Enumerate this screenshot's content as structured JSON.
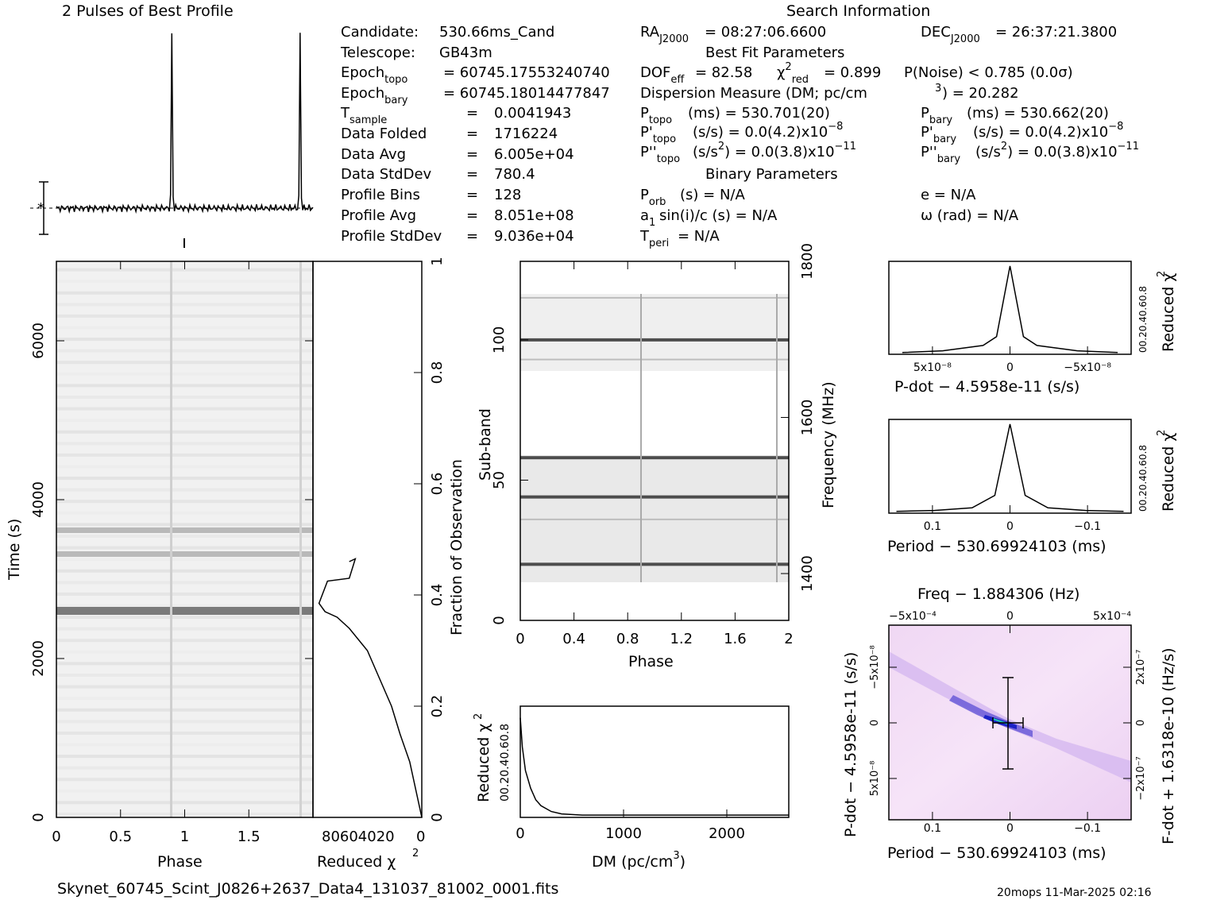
{
  "profile": {
    "title": "2 Pulses of Best Profile"
  },
  "info": {
    "left": [
      {
        "label": "Candidate:",
        "value": "530.66ms_Cand"
      },
      {
        "label": "Telescope:",
        "value": "GB43m"
      },
      {
        "label": "Epoch",
        "sub": "topo",
        "value": "= 60745.17553240740"
      },
      {
        "label": "Epoch",
        "sub": "bary",
        "value": "= 60745.18014477847"
      },
      {
        "label": "T",
        "sub": "sample",
        "value": "0.0041943"
      },
      {
        "label": "Data Folded",
        "value": "1716224"
      },
      {
        "label": "Data Avg",
        "value": "6.005e+04"
      },
      {
        "label": "Data StdDev",
        "value": "780.4"
      },
      {
        "label": "Profile Bins",
        "value": "128"
      },
      {
        "label": "Profile Avg",
        "value": "8.051e+08"
      },
      {
        "label": "Profile StdDev",
        "value": "9.036e+04"
      }
    ],
    "search_title": "Search Information",
    "ra": "= 08:27:06.6600",
    "dec": "= 26:37:21.3800",
    "best_fit_title": "Best Fit Parameters",
    "dof": "= 82.58",
    "chi2": "= 0.899",
    "pnoise": "P(Noise) < 0.785   (0.0σ)",
    "dm_line": "Dispersion Measure (DM; pc/cm",
    "dm_value": ") = 20.282",
    "ptopo": "(ms) =  530.701(20)",
    "pbary": "(ms) =  530.662(20)",
    "pdot_topo": "(s/s) = 0.0(4.2)x10",
    "pdot_topo_exp": "−8",
    "pdot_bary": "(s/s) = 0.0(4.2)x10",
    "pdot_bary_exp": "−8",
    "pddot_topo": "(s/s",
    "pddot_topo_val": ") = 0.0(3.8)x10",
    "pddot_topo_exp": "−11",
    "pddot_bary": "(s/s",
    "pddot_bary_val": ") = 0.0(3.8)x10",
    "pddot_bary_exp": "−11",
    "binary_title": "Binary Parameters",
    "porb": "(s) = N/A",
    "a1sini": "sin(i)/c (s) = N/A",
    "tperi": "= N/A",
    "e": "e = N/A",
    "omega": "ω (rad) = N/A"
  },
  "footer": {
    "filename": "Skynet_60745_Scint_J0826+2637_Data4_131037_81002_0001.fits",
    "stamp": "20mops 11-Mar-2025 02:16"
  },
  "chart_data": [
    {
      "type": "line",
      "name": "profile",
      "title": "2 Pulses of Best Profile",
      "xlim": [
        0,
        2
      ],
      "pulse_phases": [
        0.9,
        1.9
      ],
      "baseline": 0.0,
      "peak": 1.0
    },
    {
      "type": "heatmap",
      "name": "time-phase",
      "xlabel": "Phase",
      "ylabel": "Time (s)",
      "xlim": [
        0,
        2
      ],
      "ylim": [
        0,
        7000
      ],
      "xticks": [
        "0",
        "0.5",
        "1",
        "1.5"
      ],
      "yticks": [
        "0",
        "2000",
        "4000",
        "6000"
      ],
      "bright_rows_time_s": [
        2600,
        3300,
        3600
      ]
    },
    {
      "type": "line",
      "name": "reduced-chi2-vs-time",
      "xlabel": "Reduced χ",
      "ylabel": "Fraction of Observation",
      "xticks": [
        "80604020",
        "0"
      ],
      "yticks": [
        "0",
        "0.2",
        "0.4",
        "0.6",
        "0.8",
        "1"
      ],
      "x": [
        0,
        5,
        10,
        18,
        25,
        35,
        45,
        60,
        70,
        80,
        85,
        78,
        60,
        55,
        60
      ],
      "y": [
        0,
        0.05,
        0.1,
        0.15,
        0.2,
        0.25,
        0.3,
        0.34,
        0.36,
        0.37,
        0.385,
        0.425,
        0.43,
        0.465,
        0.46
      ]
    },
    {
      "type": "heatmap",
      "name": "subband-phase",
      "xlabel": "Phase",
      "ylabel": "Sub-band",
      "y2label": "Frequency (MHz)",
      "xlim": [
        0,
        2
      ],
      "ylim": [
        0,
        128
      ],
      "xticks": [
        "0",
        "0.4",
        "0.8",
        "1.2",
        "1.6",
        "2"
      ],
      "yticks": [
        "0",
        "50",
        "100"
      ],
      "y2ticks": [
        "1400",
        "1600",
        "1800"
      ],
      "dark_subbands": [
        20,
        44,
        58,
        100
      ]
    },
    {
      "type": "line",
      "name": "reduced-chi2-vs-dm",
      "xlabel": "DM (pc/cm",
      "ylabel": "Reduced χ",
      "xlim": [
        0,
        2600
      ],
      "xticks": [
        "0",
        "1000",
        "2000"
      ],
      "yticks": [
        "0",
        "0.2",
        "0.4",
        "0.6",
        "0.8"
      ],
      "x": [
        0,
        20,
        50,
        100,
        150,
        200,
        300,
        400,
        600,
        1000,
        1500,
        2000,
        2600
      ],
      "y": [
        0.85,
        0.6,
        0.4,
        0.25,
        0.15,
        0.1,
        0.05,
        0.03,
        0.02,
        0.02,
        0.02,
        0.02,
        0.02
      ]
    },
    {
      "type": "line",
      "name": "reduced-chi2-vs-pdot",
      "xlabel": "P-dot − 4.5958e-11 (s/s)",
      "ylabel": "Reduced χ",
      "xticks": [
        "5x10⁻⁸",
        "0",
        "−5x10⁻⁸"
      ],
      "yticks": [
        "0",
        "0.2",
        "0.4",
        "0.6",
        "0.8"
      ],
      "x": [
        8e-08,
        5e-08,
        2e-08,
        1e-08,
        0,
        -1e-08,
        -2e-08,
        -5e-08,
        -8e-08
      ],
      "y": [
        0.02,
        0.04,
        0.1,
        0.2,
        1.0,
        0.2,
        0.1,
        0.04,
        0.02
      ]
    },
    {
      "type": "line",
      "name": "reduced-chi2-vs-period",
      "xlabel": "Period − 530.69924103 (ms)",
      "ylabel": "Reduced χ",
      "xticks": [
        "0.1",
        "0",
        "−0.1"
      ],
      "yticks": [
        "0",
        "0.2",
        "0.4",
        "0.6",
        "0.8"
      ],
      "x": [
        0.15,
        0.1,
        0.05,
        0.02,
        0,
        -0.02,
        -0.05,
        -0.1,
        -0.15
      ],
      "y": [
        0.02,
        0.03,
        0.06,
        0.2,
        1.0,
        0.2,
        0.06,
        0.03,
        0.02
      ]
    },
    {
      "type": "heatmap",
      "name": "period-pdot-plane",
      "title": "Freq − 1.884306 (Hz)",
      "xlabel": "Period − 530.69924103 (ms)",
      "ylabel": "P-dot − 4.5958e-11 (s/s)",
      "y2label": "F-dot + 1.6318e-10 (Hz/s)",
      "xticks": [
        "0.1",
        "0",
        "−0.1"
      ],
      "x2ticks": [
        "−5x10⁻⁴",
        "0",
        "5x10⁻⁴"
      ],
      "yticks": [
        "−5x10⁻⁸",
        "0",
        "5x10⁻⁸"
      ],
      "y2ticks": [
        "2x10⁻⁷",
        "0",
        "−2x10⁻⁷"
      ]
    }
  ]
}
